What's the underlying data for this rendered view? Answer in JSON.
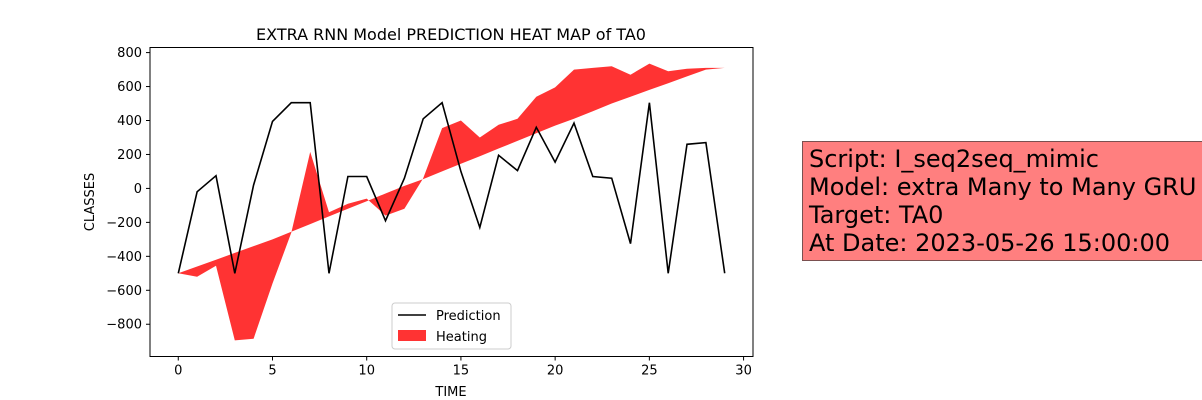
{
  "chart_data": {
    "type": "line",
    "title": "EXTRA RNN Model PREDICTION HEAT MAP of TA0",
    "xlabel": "TIME",
    "ylabel": "CLASSES",
    "xlim": [
      -1.5,
      30.5
    ],
    "ylim": [
      -990,
      830
    ],
    "xticks": [
      0,
      5,
      10,
      15,
      20,
      25,
      30
    ],
    "yticks": [
      -800,
      -600,
      -400,
      -200,
      0,
      200,
      400,
      600,
      800
    ],
    "x": [
      0,
      1,
      2,
      3,
      4,
      5,
      6,
      7,
      8,
      9,
      10,
      11,
      12,
      13,
      14,
      15,
      16,
      17,
      18,
      19,
      20,
      21,
      22,
      23,
      24,
      25,
      26,
      27,
      28,
      29
    ],
    "series": [
      {
        "name": "Prediction",
        "type": "line",
        "color": "#000000",
        "values": [
          -500,
          -20,
          75,
          -500,
          20,
          395,
          505,
          505,
          -500,
          70,
          70,
          -190,
          60,
          410,
          505,
          100,
          -230,
          195,
          105,
          360,
          155,
          385,
          70,
          60,
          -325,
          505,
          -500,
          260,
          270,
          -500
        ]
      },
      {
        "name": "Heating",
        "type": "fill_between",
        "color": "#ff0000",
        "lower_line": [
          -500,
          -460,
          -420,
          -380,
          -340,
          -300,
          -255,
          -210,
          -165,
          -120,
          -75,
          -30,
          15,
          55,
          100,
          145,
          190,
          235,
          280,
          325,
          370,
          410,
          455,
          500,
          540,
          580,
          620,
          660,
          700,
          710
        ],
        "upper_line": [
          -500,
          -520,
          -455,
          -895,
          -885,
          -560,
          -260,
          215,
          -140,
          -90,
          -60,
          -160,
          -120,
          60,
          355,
          400,
          300,
          375,
          410,
          540,
          595,
          700,
          710,
          720,
          670,
          735,
          690,
          705,
          710,
          710
        ]
      }
    ],
    "legend": {
      "placement": "lower-center",
      "entries": [
        "Prediction",
        "Heating"
      ]
    },
    "grid": false
  },
  "info_box": {
    "line1": "Script: I_seq2seq_mimic",
    "line2": "Model: extra Many to Many GRU",
    "line3": "Target: TA0",
    "line4": "At Date: 2023-05-26 15:00:00",
    "background": "#ff7f7f"
  }
}
